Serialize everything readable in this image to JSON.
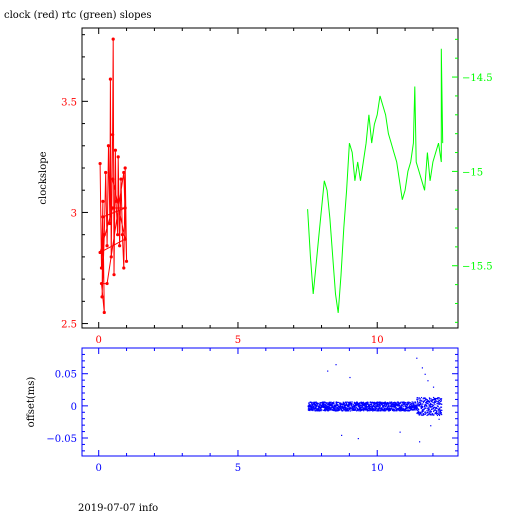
{
  "chart_data": [
    {
      "type": "line",
      "title": "clock (red) rtc (green) slopes",
      "xlabel": "",
      "ylabel": "clockslope",
      "xlim": [
        -0.6,
        12.9
      ],
      "ylim": [
        2.48,
        3.83
      ],
      "x_ticks": [
        0,
        5,
        10
      ],
      "y_ticks": [
        2.5,
        3,
        3.5
      ],
      "y2lim": [
        -15.83,
        -14.24
      ],
      "y2_ticks": [
        -14.5,
        -15,
        -15.5
      ],
      "series": [
        {
          "name": "clock",
          "axis": "left",
          "color": "#ff0000",
          "points": [
            [
              0.05,
              3.22
            ],
            [
              0.1,
              2.75
            ],
            [
              0.15,
              3.05
            ],
            [
              0.12,
              2.62
            ],
            [
              0.2,
              2.9
            ],
            [
              0.25,
              3.18
            ],
            [
              0.3,
              2.85
            ],
            [
              0.35,
              3.3
            ],
            [
              0.4,
              2.95
            ],
            [
              0.42,
              3.6
            ],
            [
              0.45,
              2.8
            ],
            [
              0.5,
              3.35
            ],
            [
              0.52,
              3.78
            ],
            [
              0.55,
              2.72
            ],
            [
              0.6,
              3.28
            ],
            [
              0.62,
              3.05
            ],
            [
              0.68,
              2.9
            ],
            [
              0.7,
              3.25
            ],
            [
              0.75,
              2.85
            ],
            [
              0.8,
              3.15
            ],
            [
              0.85,
              2.9
            ],
            [
              0.9,
              2.75
            ],
            [
              0.95,
              3.2
            ],
            [
              1.0,
              2.78
            ],
            [
              0.9,
              3.18
            ],
            [
              0.3,
              2.68
            ],
            [
              0.1,
              2.68
            ],
            [
              0.2,
              2.55
            ],
            [
              0.15,
              2.98
            ],
            [
              0.95,
              3.02
            ],
            [
              0.5,
              3.02
            ],
            [
              0.05,
              2.82
            ],
            [
              0.95,
              2.88
            ],
            [
              0.5,
              3.15
            ]
          ]
        },
        {
          "name": "rtc",
          "axis": "right",
          "color": "#00ff00",
          "points": [
            [
              7.5,
              -15.2
            ],
            [
              7.6,
              -15.45
            ],
            [
              7.7,
              -15.65
            ],
            [
              7.8,
              -15.5
            ],
            [
              7.9,
              -15.35
            ],
            [
              8.0,
              -15.2
            ],
            [
              8.1,
              -15.05
            ],
            [
              8.2,
              -15.1
            ],
            [
              8.3,
              -15.25
            ],
            [
              8.4,
              -15.45
            ],
            [
              8.5,
              -15.65
            ],
            [
              8.6,
              -15.75
            ],
            [
              8.7,
              -15.55
            ],
            [
              8.8,
              -15.3
            ],
            [
              8.9,
              -15.1
            ],
            [
              9.0,
              -14.85
            ],
            [
              9.1,
              -14.9
            ],
            [
              9.2,
              -15.05
            ],
            [
              9.3,
              -14.95
            ],
            [
              9.4,
              -15.05
            ],
            [
              9.5,
              -14.95
            ],
            [
              9.6,
              -14.85
            ],
            [
              9.7,
              -14.7
            ],
            [
              9.8,
              -14.85
            ],
            [
              9.9,
              -14.75
            ],
            [
              10.0,
              -14.7
            ],
            [
              10.1,
              -14.6
            ],
            [
              10.2,
              -14.65
            ],
            [
              10.3,
              -14.7
            ],
            [
              10.4,
              -14.8
            ],
            [
              10.5,
              -14.85
            ],
            [
              10.6,
              -14.9
            ],
            [
              10.7,
              -14.95
            ],
            [
              10.8,
              -15.05
            ],
            [
              10.9,
              -15.15
            ],
            [
              11.0,
              -15.1
            ],
            [
              11.1,
              -15.0
            ],
            [
              11.2,
              -14.95
            ],
            [
              11.3,
              -14.85
            ],
            [
              11.35,
              -14.55
            ],
            [
              11.4,
              -14.95
            ],
            [
              11.5,
              -15.0
            ],
            [
              11.6,
              -15.05
            ],
            [
              11.7,
              -15.1
            ],
            [
              11.8,
              -14.9
            ],
            [
              11.9,
              -15.05
            ],
            [
              12.0,
              -14.95
            ],
            [
              12.1,
              -14.9
            ],
            [
              12.2,
              -14.85
            ],
            [
              12.3,
              -14.95
            ],
            [
              12.3,
              -14.35
            ],
            [
              12.35,
              -14.85
            ]
          ]
        }
      ]
    },
    {
      "type": "scatter",
      "title": "",
      "xlabel": "",
      "ylabel": "offset(ms)",
      "xlim": [
        -0.6,
        12.9
      ],
      "ylim": [
        -0.078,
        0.09
      ],
      "x_ticks": [
        0,
        5,
        10
      ],
      "y_ticks": [
        0.05,
        0,
        -0.05
      ],
      "series": [
        {
          "name": "offset",
          "color": "#0000ff",
          "x_range": [
            7.5,
            12.3
          ],
          "band": [
            -0.006,
            0.006
          ],
          "outliers": [
            [
              8.2,
              0.055
            ],
            [
              8.5,
              0.065
            ],
            [
              8.7,
              -0.045
            ],
            [
              9.0,
              0.045
            ],
            [
              9.3,
              -0.05
            ],
            [
              10.8,
              -0.04
            ],
            [
              11.4,
              0.075
            ],
            [
              11.5,
              -0.055
            ],
            [
              11.6,
              0.06
            ],
            [
              11.8,
              0.04
            ],
            [
              12.0,
              0.03
            ],
            [
              12.2,
              -0.02
            ],
            [
              11.9,
              -0.03
            ],
            [
              11.7,
              0.05
            ]
          ]
        }
      ]
    }
  ],
  "footer": {
    "text": "2019-07-07 info"
  },
  "colors": {
    "clock": "#ff0000",
    "rtc": "#00ff00",
    "offset": "#0000ff",
    "axis_top": "#000000"
  }
}
